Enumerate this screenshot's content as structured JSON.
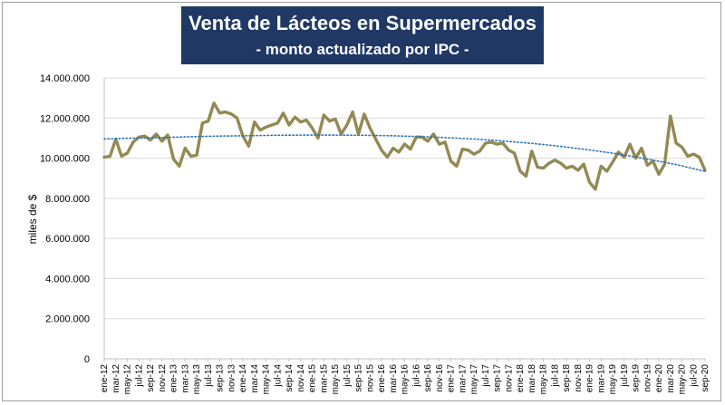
{
  "chart_data": {
    "type": "line",
    "title": "Venta de Lácteos en Supermercados",
    "subtitle": "- monto actualizado por IPC -",
    "ylabel": "miles de $",
    "xlabel": "",
    "ylim": [
      0,
      14000000
    ],
    "y_ticks": [
      "0",
      "2.000.000",
      "4.000.000",
      "6.000.000",
      "8.000.000",
      "10.000.000",
      "12.000.000",
      "14.000.000"
    ],
    "grid": "horizontal",
    "legend": "none",
    "x_tick_labels": [
      "ene-12",
      "mar-12",
      "may-12",
      "jul-12",
      "sep-12",
      "nov-12",
      "ene-13",
      "mar-13",
      "may-13",
      "jul-13",
      "sep-13",
      "nov-13",
      "ene-14",
      "mar-14",
      "may-14",
      "jul-14",
      "sep-14",
      "nov-14",
      "ene-15",
      "mar-15",
      "may-15",
      "jul-15",
      "sep-15",
      "nov-15",
      "ene-16",
      "mar-16",
      "may-16",
      "jul-16",
      "sep-16",
      "nov-16",
      "ene-17",
      "mar-17",
      "may-17",
      "jul-17",
      "sep-17",
      "nov-17",
      "ene-18",
      "mar-18",
      "may-18",
      "jul-18",
      "sep-18",
      "nov-18",
      "ene-19",
      "mar-19",
      "may-19",
      "jul-19",
      "sep-19",
      "nov-19",
      "ene-20",
      "mar-20",
      "may-20",
      "jul-20",
      "sep-20"
    ],
    "series": [
      {
        "color": "#938953",
        "style": "solid",
        "values": [
          10050000,
          10100000,
          10950000,
          10100000,
          10250000,
          10800000,
          11050000,
          11100000,
          10900000,
          11200000,
          10850000,
          11150000,
          9950000,
          9600000,
          10500000,
          10100000,
          10150000,
          11750000,
          11850000,
          12750000,
          12250000,
          12300000,
          12200000,
          12000000,
          11100000,
          10600000,
          11800000,
          11400000,
          11550000,
          11650000,
          11750000,
          12250000,
          11650000,
          12050000,
          11800000,
          11900000,
          11500000,
          11000000,
          12150000,
          11850000,
          11950000,
          11200000,
          11650000,
          12300000,
          11200000,
          12200000,
          11500000,
          10950000,
          10400000,
          10050000,
          10500000,
          10300000,
          10700000,
          10450000,
          11050000,
          11050000,
          10850000,
          11200000,
          10700000,
          10800000,
          9850000,
          9600000,
          10450000,
          10400000,
          10200000,
          10350000,
          10750000,
          10800000,
          10700000,
          10750000,
          10400000,
          10250000,
          9350000,
          9100000,
          10350000,
          9550000,
          9500000,
          9750000,
          9900000,
          9750000,
          9500000,
          9600000,
          9400000,
          9700000,
          8800000,
          8450000,
          9600000,
          9350000,
          9800000,
          10300000,
          10050000,
          10700000,
          10000000,
          10500000,
          9650000,
          9850000,
          9200000,
          9700000,
          12100000,
          10750000,
          10550000,
          10100000,
          10200000,
          10050000,
          9400000
        ]
      },
      {
        "color": "#2e75b6",
        "style": "dotted",
        "values": [
          10960000,
          11000000,
          11030000,
          11070000,
          11100000,
          11120000,
          11140000,
          11150000,
          11150000,
          11140000,
          11120000,
          11080000,
          11020000,
          10950000,
          10850000,
          10730000,
          10580000,
          10400000,
          10200000,
          9950000,
          9680000,
          9340000
        ]
      }
    ]
  }
}
